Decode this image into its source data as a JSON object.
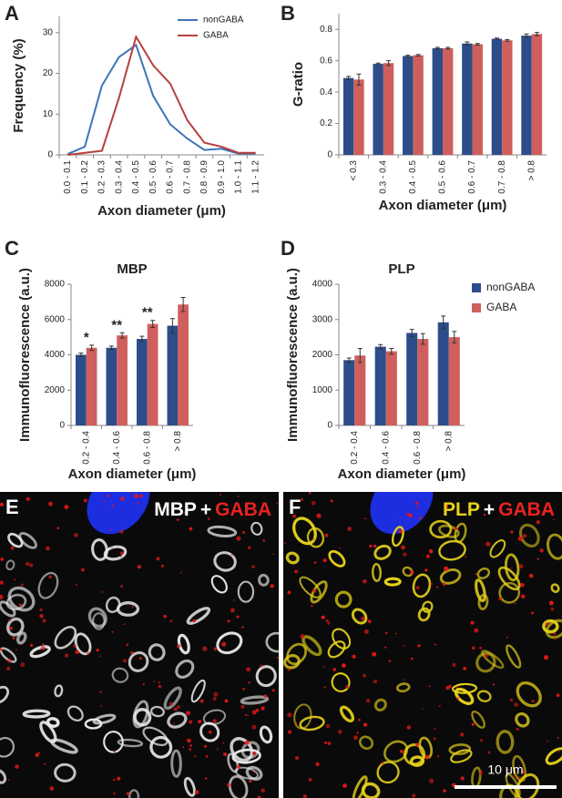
{
  "chart_data": [
    {
      "type": "line",
      "panel": "A",
      "xlabel": "Axon diameter (μm)",
      "ylabel": "Frequency (%)",
      "categories": [
        "0.0 - 0.1",
        "0.1 - 0.2",
        "0.2 - 0.3",
        "0.3 - 0.4",
        "0.4 - 0.5",
        "0.5 - 0.6",
        "0.6 - 0.7",
        "0.7 - 0.8",
        "0.8 - 0.9",
        "0.9 - 1.0",
        "1.0 - 1.1",
        "1.1 - 1.2"
      ],
      "series": [
        {
          "name": "nonGABA",
          "color": "#3d74ba",
          "values": [
            0.2,
            2,
            17,
            24,
            27,
            14.5,
            7.5,
            4,
            1.2,
            1.5,
            0.3,
            0.3
          ]
        },
        {
          "name": "GABA",
          "color": "#b8403c",
          "values": [
            0,
            0.5,
            1,
            14,
            29,
            22,
            17.5,
            8.5,
            3,
            2,
            0.5,
            0.5
          ]
        }
      ],
      "ylim": [
        0,
        34
      ],
      "yticks": [
        0,
        10,
        20,
        30
      ],
      "legend": "top-right"
    },
    {
      "type": "bar",
      "panel": "B",
      "xlabel": "Axon diameter (μm)",
      "ylabel": "G-ratio",
      "categories": [
        "< 0.3",
        "0.3 - 0.4",
        "0.4 - 0.5",
        "0.5 - 0.6",
        "0.6 - 0.7",
        "0.7 - 0.8",
        "> 0.8"
      ],
      "series": [
        {
          "color": "#2c4d8a",
          "values": [
            0.49,
            0.58,
            0.63,
            0.68,
            0.71,
            0.74,
            0.76
          ],
          "errors": [
            0.01,
            0.005,
            0.005,
            0.005,
            0.01,
            0.005,
            0.01
          ]
        },
        {
          "color": "#cf5f5c",
          "values": [
            0.48,
            0.585,
            0.635,
            0.68,
            0.705,
            0.73,
            0.77
          ],
          "errors": [
            0.035,
            0.015,
            0.005,
            0.005,
            0.005,
            0.005,
            0.01
          ]
        }
      ],
      "ylim": [
        0,
        0.9
      ],
      "yticks": [
        0,
        0.2,
        0.4,
        0.6,
        0.8
      ]
    },
    {
      "type": "bar",
      "panel": "C",
      "title": "MBP",
      "xlabel": "Axon diameter (μm)",
      "ylabel": "Immunofluorescence (a.u.)",
      "categories": [
        "0.2 - 0.4",
        "0.4 - 0.6",
        "0.6 - 0.8",
        "> 0.8"
      ],
      "series": [
        {
          "color": "#2c4d8a",
          "values": [
            4000,
            4400,
            4900,
            5650
          ],
          "errors": [
            100,
            100,
            150,
            400
          ]
        },
        {
          "color": "#cf5f5c",
          "values": [
            4400,
            5100,
            5750,
            6850
          ],
          "errors": [
            150,
            150,
            200,
            400
          ]
        }
      ],
      "significance": [
        "*",
        "**",
        "**",
        null
      ],
      "ylim": [
        0,
        8000
      ],
      "yticks": [
        0,
        2000,
        4000,
        6000,
        8000
      ]
    },
    {
      "type": "bar",
      "panel": "D",
      "title": "PLP",
      "xlabel": "Axon diameter (μm)",
      "ylabel": "Immunofluorescence (a.u.)",
      "categories": [
        "0.2 - 0.4",
        "0.4 - 0.6",
        "0.6 - 0.8",
        "> 0.8"
      ],
      "series": [
        {
          "name": "nonGABA",
          "color": "#2c4d8a",
          "values": [
            1850,
            2230,
            2620,
            2920
          ],
          "errors": [
            60,
            60,
            100,
            180
          ]
        },
        {
          "name": "GABA",
          "color": "#cf5f5c",
          "values": [
            1980,
            2100,
            2450,
            2500
          ],
          "errors": [
            200,
            80,
            150,
            160
          ]
        }
      ],
      "ylim": [
        0,
        4000
      ],
      "yticks": [
        0,
        1000,
        2000,
        3000,
        4000
      ],
      "legend": "right"
    }
  ],
  "images": [
    {
      "panel": "E",
      "labels": [
        {
          "text": "MBP",
          "color": "#ffffff"
        },
        {
          "text": "+",
          "color": "#ffffff"
        },
        {
          "text": "GABA",
          "color": "#e8231f"
        }
      ]
    },
    {
      "panel": "F",
      "labels": [
        {
          "text": "PLP",
          "color": "#e6d21a"
        },
        {
          "text": "+",
          "color": "#ffffff"
        },
        {
          "text": "GABA",
          "color": "#e8231f"
        }
      ]
    }
  ],
  "scale_bar": "10 μm"
}
